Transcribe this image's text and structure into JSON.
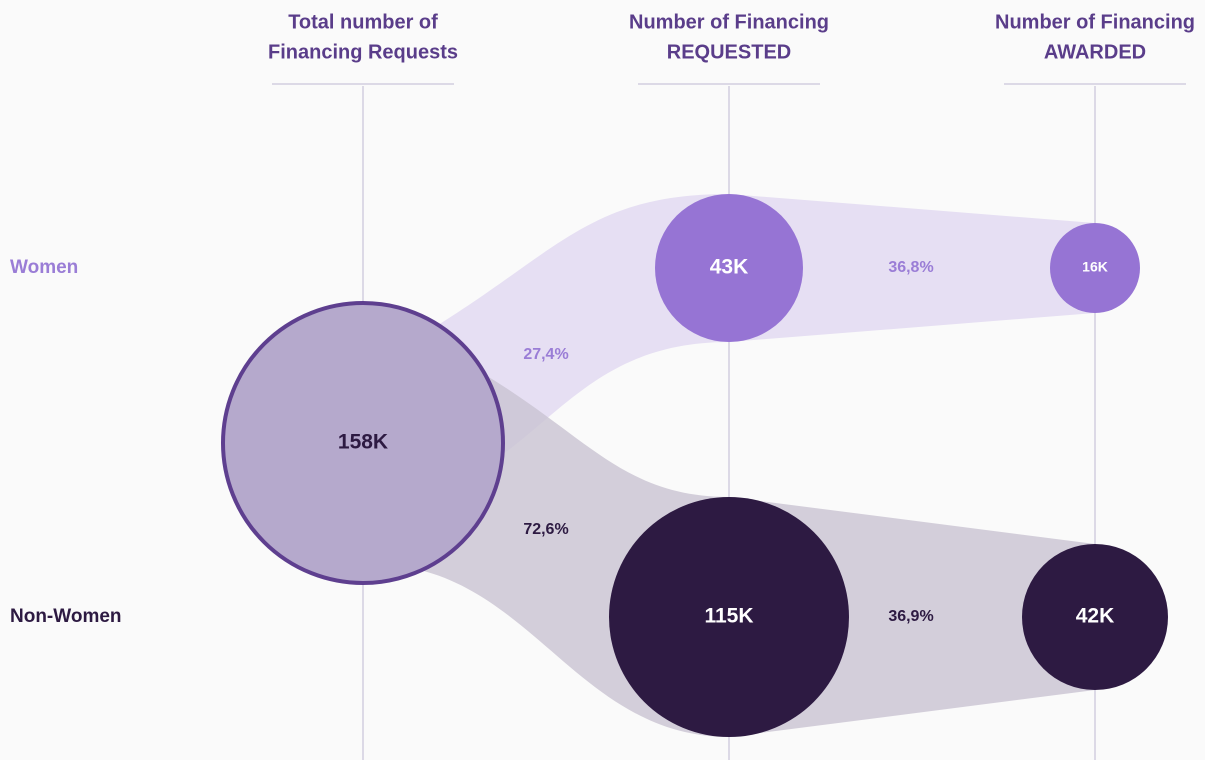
{
  "columns": [
    {
      "title": [
        "Total number of",
        "Financing Requests"
      ]
    },
    {
      "title": [
        "Number of Financing",
        "REQUESTED"
      ]
    },
    {
      "title": [
        "Number of Financing",
        "AWARDED"
      ]
    }
  ],
  "rows": [
    {
      "label": "Women"
    },
    {
      "label": "Non-Women"
    }
  ],
  "nodes": [
    {
      "label": "158K"
    },
    {
      "label": "43K"
    },
    {
      "label": "16K"
    },
    {
      "label": "115K"
    },
    {
      "label": "42K"
    }
  ],
  "flows": [
    {
      "label": "27,4%"
    },
    {
      "label": "36,8%"
    },
    {
      "label": "72,6%"
    },
    {
      "label": "36,9%"
    }
  ]
}
